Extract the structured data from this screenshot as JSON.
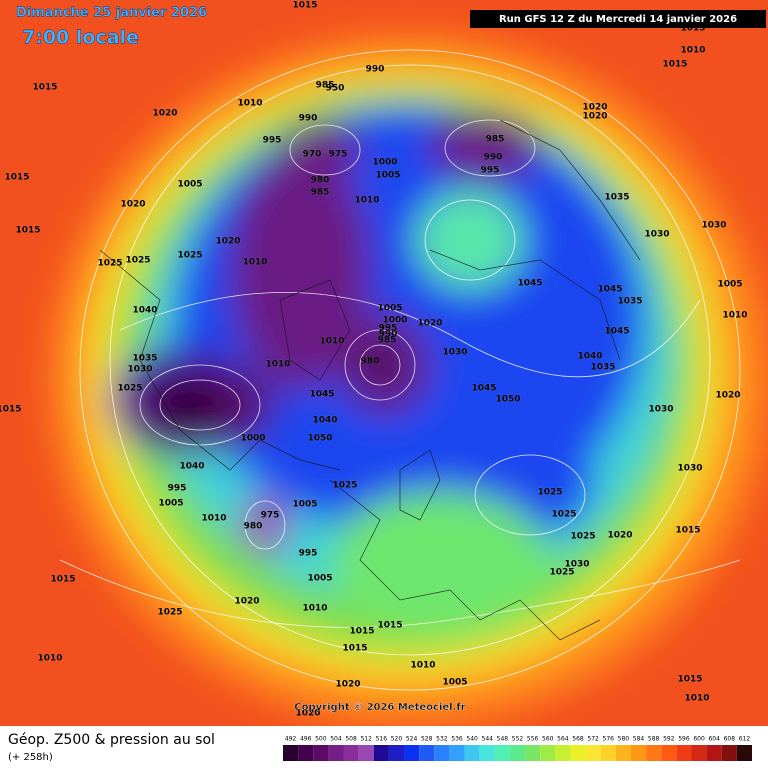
{
  "header": {
    "date": "Dimanche 25 janvier 2026",
    "time": "7:00 locale",
    "run": "Run GFS 12 Z du Mercredi 14 janvier 2026"
  },
  "map": {
    "copyright": "Copyright © 2026 Meteociel.fr",
    "pressure_labels": [
      "1015",
      "1015",
      "1020",
      "1010",
      "985",
      "950",
      "990",
      "990",
      "995",
      "970",
      "975",
      "1000",
      "1005",
      "980",
      "985",
      "1005",
      "1015",
      "1020",
      "1010",
      "985",
      "990",
      "995",
      "1020",
      "1020",
      "1015",
      "1010",
      "1015",
      "1035",
      "1030",
      "1030",
      "1015",
      "1020",
      "1025",
      "1025",
      "1025",
      "1010",
      "1045",
      "1045",
      "1035",
      "1005",
      "1010",
      "1040",
      "1005",
      "1000",
      "995",
      "990",
      "985",
      "1020",
      "1010",
      "1030",
      "980",
      "1045",
      "1040",
      "1035",
      "1035",
      "1030",
      "1010",
      "1025",
      "1045",
      "1050",
      "1015",
      "1045",
      "1030",
      "1020",
      "1040",
      "1050",
      "1000",
      "1040",
      "1030",
      "1025",
      "995",
      "1025",
      "1025",
      "1005",
      "1005",
      "1010",
      "980",
      "975",
      "1025",
      "1020",
      "1015",
      "995",
      "1030",
      "1025",
      "1005",
      "1015",
      "1025",
      "1020",
      "1010",
      "1015",
      "1015",
      "1015",
      "1010",
      "1010",
      "1005",
      "1020",
      "1015",
      "1010",
      "1020"
    ]
  },
  "legend": {
    "title": "Géop. Z500 & pression au sol",
    "lead": "(+ 258h)",
    "scale": {
      "values": [
        492,
        496,
        500,
        504,
        508,
        512,
        516,
        520,
        524,
        528,
        532,
        536,
        540,
        544,
        548,
        552,
        556,
        560,
        564,
        568,
        572,
        576,
        580,
        584,
        588,
        592,
        596,
        600,
        604,
        608,
        612
      ],
      "colors": [
        "#2a0030",
        "#44004e",
        "#5c0a6a",
        "#741e86",
        "#8a2e9c",
        "#9a46b4",
        "#1e0a96",
        "#1e1ec8",
        "#0a32f0",
        "#1e5af5",
        "#2882ff",
        "#32a0ff",
        "#3cc8f0",
        "#46e6dc",
        "#50f0b4",
        "#5aeb8c",
        "#7ae664",
        "#a0eb46",
        "#c8f032",
        "#ebf028",
        "#fae632",
        "#ffd228",
        "#ffb41e",
        "#ff9614",
        "#ff7814",
        "#ff5a14",
        "#f03c14",
        "#d22814",
        "#b41414",
        "#821010",
        "#280808"
      ]
    }
  }
}
